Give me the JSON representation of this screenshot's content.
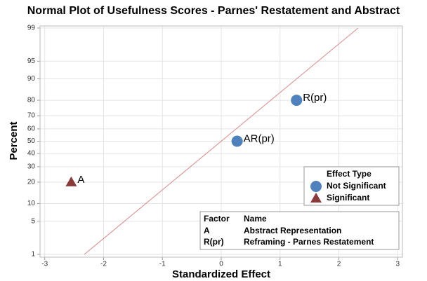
{
  "chart_data": {
    "type": "normal_probability",
    "title": "Normal Plot of Usefulness Scores - Parnes' Restatement and Abstract",
    "x_label": "Standardized Effect",
    "y_label": "Percent",
    "xlim": [
      -3.08,
      3.08
    ],
    "xticks": [
      -3,
      -2,
      -1,
      0,
      1,
      2,
      3
    ],
    "ylim": [
      1,
      99
    ],
    "yticks": [
      1,
      5,
      10,
      20,
      30,
      40,
      50,
      60,
      70,
      80,
      90,
      95,
      99
    ],
    "yscale": "probability",
    "grid": true,
    "fit_line": {
      "mean": 0,
      "sd": 1,
      "color": "#d98a8a"
    },
    "legend_title": "Effect Type",
    "series": [
      {
        "name": "Not Significant",
        "color": "#4f81bd",
        "marker": "circle",
        "x": [
          0.27,
          1.28
        ],
        "values": [
          50,
          80
        ],
        "labels": [
          "AR(pr)",
          "R(pr)"
        ]
      },
      {
        "name": "Significant",
        "color": "#8b3a3a",
        "marker": "triangle",
        "x": [
          -2.55
        ],
        "values": [
          20
        ],
        "labels": [
          "A"
        ]
      }
    ],
    "factor_table": {
      "header": [
        "Factor",
        "Name"
      ],
      "rows": [
        [
          "A",
          "Abstract Representation"
        ],
        [
          "R(pr)",
          "Reframing - Parnes Restatement"
        ]
      ]
    }
  }
}
